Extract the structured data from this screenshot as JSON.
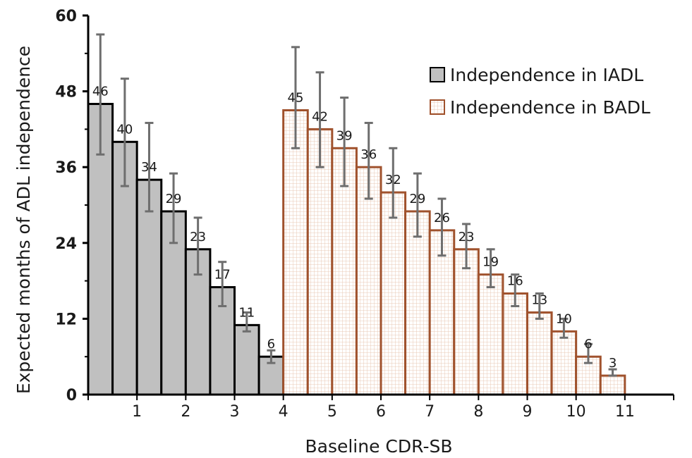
{
  "chart_data": {
    "type": "bar",
    "xlabel": "Baseline CDR-SB",
    "ylabel": "Expected months of ADL independence",
    "ylim": [
      0,
      60
    ],
    "yticks": [
      0,
      12,
      24,
      36,
      48,
      60
    ],
    "xlim": [
      0,
      12
    ],
    "xticks": [
      1,
      2,
      3,
      4,
      5,
      6,
      7,
      8,
      9,
      10,
      11
    ],
    "bar_width": 0.5,
    "legend_position": "top-right",
    "series": [
      {
        "name": "Independence in IADL",
        "fill": "#c0c0c0",
        "stroke": "#000000",
        "pattern": "solid",
        "x": [
          0.5,
          1,
          1.5,
          2,
          2.5,
          3,
          3.5,
          4
        ],
        "values": [
          46,
          40,
          34,
          29,
          23,
          17,
          11,
          6
        ],
        "labels": [
          "46",
          "40",
          "34",
          "29",
          "23",
          "17",
          "11",
          "6"
        ],
        "err_low": [
          38,
          33,
          29,
          24,
          19,
          14,
          10,
          5
        ],
        "err_high": [
          57,
          50,
          43,
          35,
          28,
          21,
          13,
          7
        ]
      },
      {
        "name": "Independence in BADL",
        "fill": "#ffffff",
        "stroke": "#a0522d",
        "pattern": "grid",
        "x": [
          4.5,
          5,
          5.5,
          6,
          6.5,
          7,
          7.5,
          8,
          8.5,
          9,
          9.5,
          10,
          10.5,
          11
        ],
        "values": [
          45,
          42,
          39,
          36,
          32,
          29,
          26,
          23,
          19,
          16,
          13,
          10,
          6,
          3
        ],
        "labels": [
          "45",
          "42",
          "39",
          "36",
          "32",
          "29",
          "26",
          "23",
          "19",
          "16",
          "13",
          "10",
          "6",
          "3"
        ],
        "err_low": [
          39,
          36,
          33,
          31,
          28,
          25,
          22,
          20,
          17,
          14,
          12,
          9,
          5,
          3
        ],
        "err_high": [
          55,
          51,
          47,
          43,
          39,
          35,
          31,
          27,
          23,
          19,
          16,
          12,
          8,
          4
        ]
      }
    ]
  }
}
